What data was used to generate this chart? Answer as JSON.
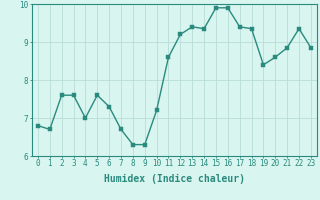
{
  "x": [
    0,
    1,
    2,
    3,
    4,
    5,
    6,
    7,
    8,
    9,
    10,
    11,
    12,
    13,
    14,
    15,
    16,
    17,
    18,
    19,
    20,
    21,
    22,
    23
  ],
  "y": [
    6.8,
    6.7,
    7.6,
    7.6,
    7.0,
    7.6,
    7.3,
    6.7,
    6.3,
    6.3,
    7.2,
    8.6,
    9.2,
    9.4,
    9.35,
    9.9,
    9.9,
    9.4,
    9.35,
    8.4,
    8.6,
    8.85,
    9.35,
    8.85
  ],
  "line_color": "#2a8a7e",
  "marker_color": "#2a8a7e",
  "bg_color": "#d8f5f0",
  "grid_color": "#b8ddd8",
  "xlabel": "Humidex (Indice chaleur)",
  "ylim": [
    6,
    10
  ],
  "xlim_min": -0.5,
  "xlim_max": 23.5,
  "yticks": [
    6,
    7,
    8,
    9,
    10
  ],
  "xticks": [
    0,
    1,
    2,
    3,
    4,
    5,
    6,
    7,
    8,
    9,
    10,
    11,
    12,
    13,
    14,
    15,
    16,
    17,
    18,
    19,
    20,
    21,
    22,
    23
  ],
  "tick_color": "#2a8a7e",
  "label_color": "#2a8a7e",
  "spine_color": "#2a8a7e",
  "xlabel_fontsize": 7,
  "tick_fontsize": 5.5,
  "marker_size": 2.2,
  "line_width": 1.0
}
